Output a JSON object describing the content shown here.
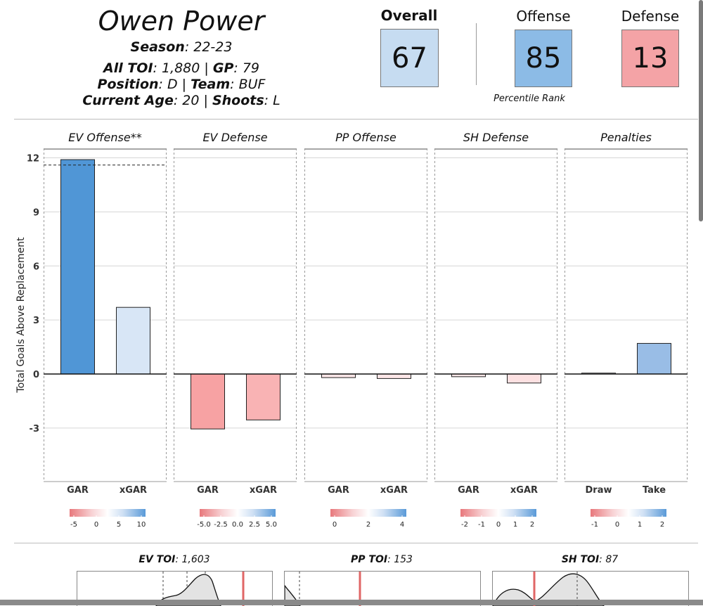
{
  "header": {
    "player_name": "Owen Power",
    "season_label": "Season",
    "season_value": ": 22-23",
    "toi_label": "All TOI",
    "toi_value": ": 1,880 | ",
    "gp_label": "GP",
    "gp_value": ": 79",
    "position_label": "Position",
    "position_value": ": D | ",
    "team_label": "Team",
    "team_value": ": BUF",
    "age_label": "Current Age",
    "age_value": ": 20 | ",
    "shoots_label": "Shoots",
    "shoots_value": ": L"
  },
  "metrics": {
    "overall": {
      "label": "Overall",
      "value": "67",
      "color": "#c6dcf1"
    },
    "offense": {
      "label": "Offense",
      "value": "85",
      "color": "#8cbbe6"
    },
    "defense": {
      "label": "Defense",
      "value": "13",
      "color": "#f4a3a6"
    },
    "caption": "Percentile Rank"
  },
  "chart_data": {
    "type": "bar",
    "ylabel": "Total Goals Above Replacement",
    "ylim": [
      -5.9,
      12.5
    ],
    "yticks": [
      "12",
      "9",
      "6",
      "3",
      "0",
      "-3"
    ],
    "ytick_values": [
      12,
      9,
      6,
      3,
      0,
      -3
    ],
    "grid": true,
    "panels": [
      {
        "title": "EV Offense**",
        "categories": [
          "GAR",
          "xGAR"
        ],
        "values": [
          11.9,
          3.7
        ],
        "colors": [
          "#5096d6",
          "#d8e6f6"
        ],
        "reference_line": 11.6,
        "legend_ticks": [
          "-5",
          "0",
          "5",
          "10"
        ]
      },
      {
        "title": "EV Defense",
        "categories": [
          "GAR",
          "xGAR"
        ],
        "values": [
          -3.05,
          -2.55
        ],
        "colors": [
          "#f7a2a3",
          "#f9b3b4"
        ],
        "legend_ticks": [
          "-5.0",
          "-2.5",
          "0.0",
          "2.5",
          "5.0"
        ]
      },
      {
        "title": "PP Offense",
        "categories": [
          "GAR",
          "xGAR"
        ],
        "values": [
          -0.2,
          -0.25
        ],
        "colors": [
          "#fde6e7",
          "#fde6e7"
        ],
        "legend_ticks": [
          "0",
          "2",
          "4"
        ]
      },
      {
        "title": "SH Defense",
        "categories": [
          "GAR",
          "xGAR"
        ],
        "values": [
          -0.15,
          -0.5
        ],
        "colors": [
          "#fde8e9",
          "#fde1e2"
        ],
        "legend_ticks": [
          "-2",
          "-1",
          "0",
          "1",
          "2"
        ]
      },
      {
        "title": "Penalties",
        "categories": [
          "Draw",
          "Take"
        ],
        "values": [
          0.05,
          1.7
        ],
        "colors": [
          "#f4f4f8",
          "#99bde6"
        ],
        "legend_ticks": [
          "-1",
          "0",
          "1",
          "2"
        ]
      }
    ]
  },
  "toi": {
    "ev_label": "EV TOI",
    "ev_value": ": 1,603",
    "pp_label": "PP TOI",
    "pp_value": ": 153",
    "sh_label": "SH TOI",
    "sh_value": ": 87"
  }
}
